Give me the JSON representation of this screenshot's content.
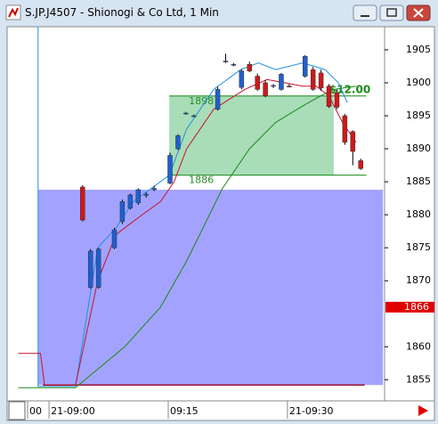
{
  "chart_data": {
    "type": "candlestick",
    "title": "S.JP.J4507 - Shionogi & Co Ltd, 1 Min",
    "ylim": [
      1851.8,
      1908.5
    ],
    "yticks": [
      1855,
      1860,
      1870,
      1875,
      1880,
      1885,
      1890,
      1895,
      1900,
      1905
    ],
    "xlim": [
      -5.5,
      42
    ],
    "xticks": [
      {
        "value": -2.7,
        "label": "00"
      },
      {
        "value": 0,
        "label": "21-09:00"
      },
      {
        "value": 15,
        "label": "09:15"
      },
      {
        "value": 30,
        "label": "21-09:30"
      }
    ],
    "up_color": "#1f5fd0",
    "down_color": "#d01818",
    "candles": {
      "x": [
        4,
        5,
        6,
        8,
        9,
        10,
        11,
        12,
        13,
        15,
        16,
        17,
        18,
        21,
        22,
        23,
        24,
        25,
        26,
        27,
        28,
        29,
        30,
        32,
        33,
        34,
        35,
        36,
        37,
        38,
        39
      ],
      "open": [
        1884.2,
        1869,
        1869,
        1875,
        1879,
        1881,
        1881.8,
        1883,
        1883.8,
        1884.8,
        1890,
        1895.4,
        1895,
        1896,
        1903.2,
        1902.7,
        1899.3,
        1902.8,
        1901,
        1900,
        1899.5,
        1899,
        1899.5,
        1901,
        1902,
        1901.5,
        1899.5,
        1898.5,
        1895,
        1892.6,
        1888.2
      ],
      "high": [
        1884.5,
        1874.8,
        1875,
        1878,
        1882.3,
        1883.2,
        1884,
        1883.4,
        1884.4,
        1889.4,
        1892.2,
        1895.6,
        1895.2,
        1899.4,
        1904.4,
        1903,
        1902,
        1903.2,
        1901.4,
        1900.4,
        1899.8,
        1901.5,
        1899.8,
        1904.2,
        1902.4,
        1902,
        1899.8,
        1899,
        1895.3,
        1892.8,
        1888.5
      ],
      "low": [
        1879,
        1868.8,
        1868.8,
        1874.8,
        1878.6,
        1880.8,
        1881.5,
        1882.6,
        1883.6,
        1884.6,
        1889.8,
        1895.2,
        1894.8,
        1895.8,
        1903,
        1902.5,
        1899,
        1901.6,
        1898.8,
        1897.8,
        1899.2,
        1898.8,
        1899.3,
        1900.8,
        1898.8,
        1898.8,
        1896.2,
        1896,
        1890.6,
        1887.5,
        1886.8
      ],
      "close": [
        1879.2,
        1874.5,
        1874.8,
        1877.7,
        1882,
        1883,
        1883.8,
        1883.1,
        1884,
        1889,
        1892,
        1895.4,
        1895,
        1899,
        1903.3,
        1902.8,
        1901.8,
        1901.8,
        1899,
        1898,
        1899.6,
        1901.3,
        1899.4,
        1904,
        1899,
        1899.2,
        1896.4,
        1896.3,
        1891,
        1889.6,
        1887
      ]
    },
    "series": [
      {
        "color": "#1f8fe0",
        "x": [
          -1.6,
          -1.6,
          3.1,
          5.9,
          8.2,
          10.4,
          14.9,
          17.1,
          20.5,
          23.9,
          26.1,
          28.3,
          31.7,
          34.5,
          36.2,
          37.3
        ],
        "values": [
          1908.5,
          1854,
          1854,
          1875,
          1878,
          1882,
          1886,
          1893,
          1899,
          1902,
          1903,
          1902,
          1903,
          1902,
          1900,
          1897
        ]
      },
      {
        "color": "#c8102e",
        "x": [
          -4.1,
          -1.3,
          -0.8,
          3.1,
          5.9,
          8.2,
          11.5,
          13.8,
          15.5,
          17.1,
          20.5,
          24.4,
          27.2,
          29.5,
          31.7,
          33.4,
          35,
          36.7,
          38.4
        ],
        "values": [
          1859,
          1859,
          1854.2,
          1854.2,
          1870,
          1877,
          1880,
          1882,
          1885,
          1890,
          1896,
          1899,
          1900.5,
          1900,
          1899.5,
          1899.5,
          1898,
          1894,
          1891
        ]
      },
      {
        "color": "#1a8a1a",
        "x": [
          -4.1,
          3.1,
          4.3,
          9.3,
          13.8,
          17.1,
          21.6,
          25,
          28.3,
          31.7,
          33.9,
          35.6,
          38.4
        ],
        "values": [
          1853.8,
          1853.8,
          1855,
          1860,
          1866,
          1873,
          1884,
          1890,
          1894,
          1896.5,
          1898,
          1899,
          1899.5
        ]
      }
    ],
    "zones": [
      {
        "color": "#9999ff",
        "x": [
          -1.6,
          41.8
        ],
        "top": 1883.8,
        "bottom": 1854.2
      },
      {
        "color": "#9ed9b0",
        "x": [
          14.9,
          35.6
        ],
        "top": 1898,
        "bottom": 1886,
        "line_end": 39.7,
        "annotation": "$12.00"
      }
    ],
    "baseline": {
      "color": "#a01030",
      "x": [
        -1,
        39.5
      ],
      "value": 1854.2
    },
    "last_price": 1866
  }
}
